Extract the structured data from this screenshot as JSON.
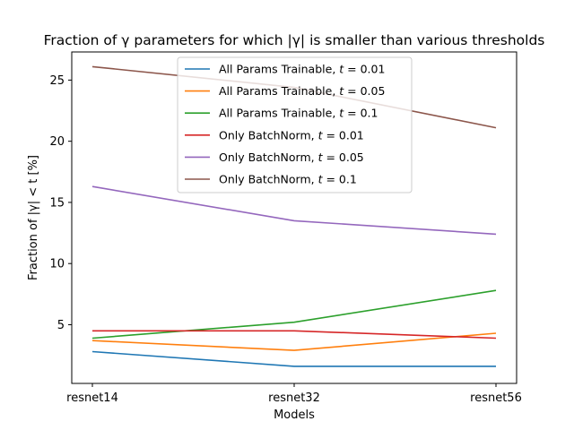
{
  "chart_data": {
    "type": "line",
    "title": "Fraction of γ parameters for which |γ| is smaller than various thresholds",
    "xlabel": "Models",
    "ylabel": "Fraction of |γ| < t [%]",
    "categories": [
      "resnet14",
      "resnet32",
      "resnet56"
    ],
    "ylim": [
      0.2,
      27.3
    ],
    "yticks": [
      5,
      10,
      15,
      20,
      25
    ],
    "ytick_labels": [
      "5",
      "10",
      "15",
      "20",
      "25"
    ],
    "grid": false,
    "legend_position": "top-center",
    "series": [
      {
        "name": "All Params Trainable, t = 0.01",
        "label_prefix": "All Params Trainable, ",
        "label_var": "t",
        "label_suffix": " = 0.01",
        "color": "#1f77b4",
        "values": [
          2.8,
          1.6,
          1.6
        ]
      },
      {
        "name": "All Params Trainable, t = 0.05",
        "label_prefix": "All Params Trainable, ",
        "label_var": "t",
        "label_suffix": " = 0.05",
        "color": "#ff7f0e",
        "values": [
          3.7,
          2.9,
          4.3
        ]
      },
      {
        "name": "All Params Trainable, t = 0.1",
        "label_prefix": "All Params Trainable, ",
        "label_var": "t",
        "label_suffix": " = 0.1",
        "color": "#2ca02c",
        "values": [
          3.9,
          5.2,
          7.8
        ]
      },
      {
        "name": "Only BatchNorm, t = 0.01",
        "label_prefix": "Only BatchNorm, ",
        "label_var": "t",
        "label_suffix": " = 0.01",
        "color": "#d62728",
        "values": [
          4.5,
          4.5,
          3.9
        ]
      },
      {
        "name": "Only BatchNorm, t = 0.05",
        "label_prefix": "Only BatchNorm, ",
        "label_var": "t",
        "label_suffix": " = 0.05",
        "color": "#9467bd",
        "values": [
          16.3,
          13.5,
          12.4
        ]
      },
      {
        "name": "Only BatchNorm, t = 0.1",
        "label_prefix": "Only BatchNorm, ",
        "label_var": "t",
        "label_suffix": " = 0.1",
        "color": "#8c564b",
        "values": [
          26.1,
          24.4,
          21.1
        ]
      }
    ]
  }
}
